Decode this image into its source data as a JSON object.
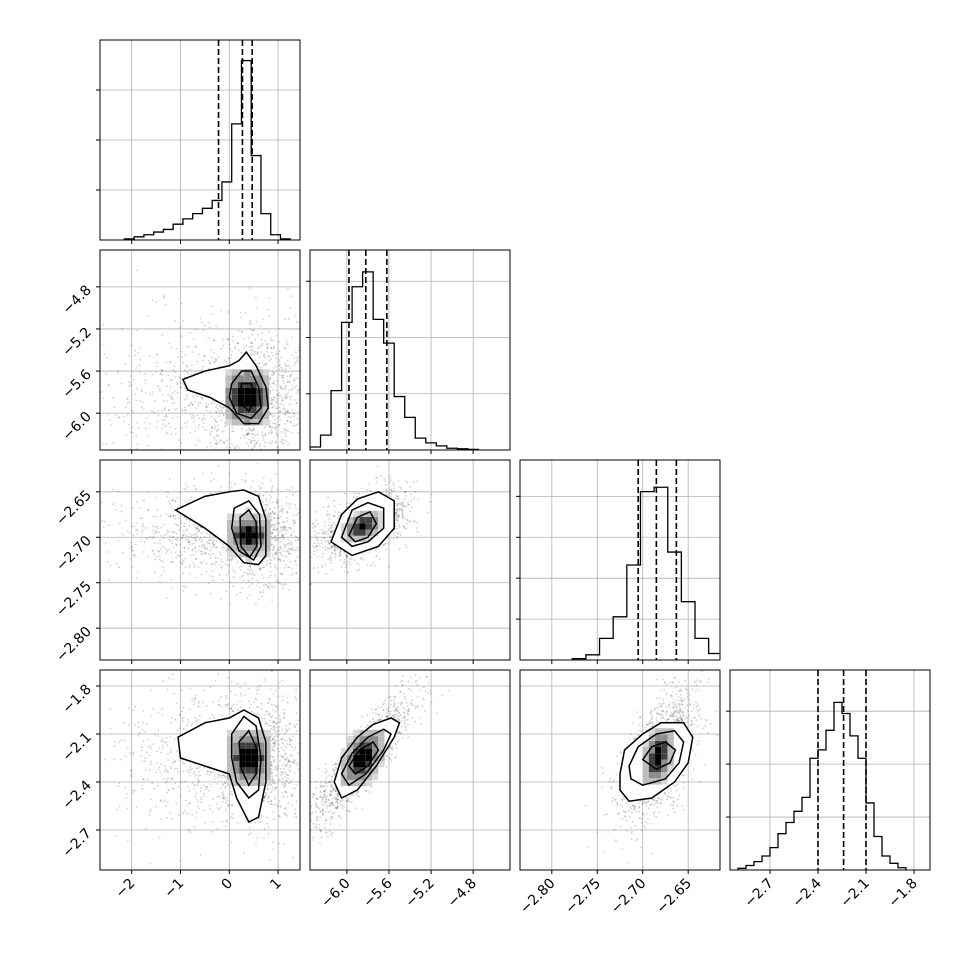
{
  "chart_data": {
    "type": "corner",
    "grid": true,
    "variables": [
      {
        "index": 0,
        "range": [
          -2.65,
          1.45
        ],
        "ticks": [
          -2,
          -1,
          0,
          1
        ],
        "tick_labels": [
          "−2",
          "−1",
          "0",
          "1"
        ],
        "quantiles": [
          -0.22,
          0.27,
          0.47
        ],
        "hist_max": 0.36,
        "hist_bins": [
          [
            -2.05,
            0.002
          ],
          [
            -1.85,
            0.006
          ],
          [
            -1.65,
            0.01
          ],
          [
            -1.45,
            0.015
          ],
          [
            -1.25,
            0.02
          ],
          [
            -1.05,
            0.03
          ],
          [
            -0.85,
            0.04
          ],
          [
            -0.65,
            0.05
          ],
          [
            -0.45,
            0.06
          ],
          [
            -0.25,
            0.075
          ],
          [
            -0.05,
            0.11
          ],
          [
            0.15,
            0.22
          ],
          [
            0.35,
            0.34
          ],
          [
            0.55,
            0.16
          ],
          [
            0.75,
            0.05
          ],
          [
            0.95,
            0.01
          ],
          [
            1.15,
            0.002
          ]
        ]
      },
      {
        "index": 1,
        "range": [
          -6.35,
          -4.45
        ],
        "ticks": [
          -6.0,
          -5.6,
          -5.2,
          -4.8
        ],
        "tick_labels": [
          "−6.0",
          "−5.6",
          "−5.2",
          "−4.8"
        ],
        "quantiles": [
          -5.98,
          -5.82,
          -5.62
        ],
        "hist_max": 0.32,
        "hist_bins": [
          [
            -6.3,
            0.005
          ],
          [
            -6.2,
            0.025
          ],
          [
            -6.1,
            0.1
          ],
          [
            -6.0,
            0.215
          ],
          [
            -5.9,
            0.275
          ],
          [
            -5.8,
            0.3
          ],
          [
            -5.7,
            0.22
          ],
          [
            -5.6,
            0.18
          ],
          [
            -5.5,
            0.09
          ],
          [
            -5.4,
            0.055
          ],
          [
            -5.3,
            0.02
          ],
          [
            -5.2,
            0.012
          ],
          [
            -5.1,
            0.007
          ],
          [
            -5.0,
            0.003
          ],
          [
            -4.9,
            0.002
          ],
          [
            -4.8,
            0.001
          ]
        ]
      },
      {
        "index": 2,
        "range": [
          -2.835,
          -2.615
        ],
        "ticks": [
          -2.8,
          -2.75,
          -2.7,
          -2.65
        ],
        "tick_labels": [
          "−2.80",
          "−2.75",
          "−2.70",
          "−2.65"
        ],
        "quantiles": [
          -2.705,
          -2.685,
          -2.663
        ],
        "hist_max": 0.44,
        "hist_bins": [
          [
            -2.77,
            0.003
          ],
          [
            -2.755,
            0.012
          ],
          [
            -2.74,
            0.05
          ],
          [
            -2.725,
            0.1
          ],
          [
            -2.71,
            0.22
          ],
          [
            -2.695,
            0.39
          ],
          [
            -2.68,
            0.4
          ],
          [
            -2.665,
            0.25
          ],
          [
            -2.65,
            0.135
          ],
          [
            -2.635,
            0.05
          ],
          [
            -2.62,
            0.015
          ]
        ]
      },
      {
        "index": 3,
        "range": [
          -2.95,
          -1.7
        ],
        "ticks": [
          -2.7,
          -2.4,
          -2.1,
          -1.8
        ],
        "tick_labels": [
          "−2.7",
          "−2.4",
          "−2.1",
          "−1.8"
        ],
        "quantiles": [
          -2.4,
          -2.24,
          -2.1
        ],
        "hist_max": 0.34,
        "hist_bins": [
          [
            -2.875,
            0.003
          ],
          [
            -2.825,
            0.008
          ],
          [
            -2.775,
            0.015
          ],
          [
            -2.725,
            0.025
          ],
          [
            -2.675,
            0.04
          ],
          [
            -2.625,
            0.065
          ],
          [
            -2.575,
            0.085
          ],
          [
            -2.525,
            0.105
          ],
          [
            -2.475,
            0.13
          ],
          [
            -2.425,
            0.2
          ],
          [
            -2.375,
            0.215
          ],
          [
            -2.325,
            0.25
          ],
          [
            -2.275,
            0.3
          ],
          [
            -2.225,
            0.28
          ],
          [
            -2.175,
            0.24
          ],
          [
            -2.125,
            0.2
          ],
          [
            -2.075,
            0.12
          ],
          [
            -2.025,
            0.06
          ],
          [
            -1.975,
            0.025
          ],
          [
            -1.925,
            0.012
          ],
          [
            -1.875,
            0.004
          ]
        ]
      }
    ],
    "pairs": [
      {
        "x_var": 0,
        "y_var": 1,
        "peak": [
          0.37,
          -5.85
        ],
        "spread": [
          0.55,
          0.28
        ],
        "cov": 0.0,
        "contours": [
          [
            [
              -0.95,
              -5.68
            ],
            [
              -0.5,
              -5.6
            ],
            [
              0.0,
              -5.55
            ],
            [
              0.2,
              -5.5
            ],
            [
              0.35,
              -5.42
            ],
            [
              0.55,
              -5.55
            ],
            [
              0.75,
              -5.75
            ],
            [
              0.8,
              -5.95
            ],
            [
              0.6,
              -6.1
            ],
            [
              0.3,
              -6.1
            ],
            [
              0.0,
              -5.95
            ],
            [
              -0.4,
              -5.85
            ],
            [
              -0.85,
              -5.78
            ]
          ],
          [
            [
              0.05,
              -5.72
            ],
            [
              0.25,
              -5.6
            ],
            [
              0.45,
              -5.6
            ],
            [
              0.6,
              -5.75
            ],
            [
              0.65,
              -5.95
            ],
            [
              0.45,
              -6.05
            ],
            [
              0.15,
              -6.0
            ],
            [
              0.0,
              -5.85
            ]
          ],
          [
            [
              0.25,
              -5.72
            ],
            [
              0.45,
              -5.72
            ],
            [
              0.52,
              -5.88
            ],
            [
              0.4,
              -5.98
            ],
            [
              0.22,
              -5.9
            ]
          ]
        ]
      },
      {
        "x_var": 0,
        "y_var": 2,
        "peak": [
          0.4,
          -2.698
        ],
        "spread": [
          0.5,
          0.02
        ],
        "cov": 0.0,
        "contours": [
          [
            [
              -1.1,
              -2.67
            ],
            [
              -0.5,
              -2.655
            ],
            [
              0.0,
              -2.65
            ],
            [
              0.3,
              -2.648
            ],
            [
              0.6,
              -2.655
            ],
            [
              0.75,
              -2.68
            ],
            [
              0.75,
              -2.72
            ],
            [
              0.6,
              -2.73
            ],
            [
              0.3,
              -2.728
            ],
            [
              0.0,
              -2.71
            ],
            [
              -0.5,
              -2.69
            ]
          ],
          [
            [
              0.1,
              -2.668
            ],
            [
              0.4,
              -2.66
            ],
            [
              0.62,
              -2.675
            ],
            [
              0.65,
              -2.71
            ],
            [
              0.5,
              -2.725
            ],
            [
              0.2,
              -2.715
            ],
            [
              0.05,
              -2.69
            ]
          ],
          [
            [
              0.22,
              -2.678
            ],
            [
              0.4,
              -2.67
            ],
            [
              0.55,
              -2.683
            ],
            [
              0.56,
              -2.71
            ],
            [
              0.42,
              -2.722
            ],
            [
              0.24,
              -2.71
            ]
          ]
        ]
      },
      {
        "x_var": 1,
        "y_var": 2,
        "peak": [
          -5.85,
          -2.688
        ],
        "spread": [
          0.16,
          0.014
        ],
        "cov": 0.5,
        "contours": [
          [
            [
              -6.15,
              -2.705
            ],
            [
              -6.05,
              -2.675
            ],
            [
              -5.9,
              -2.658
            ],
            [
              -5.7,
              -2.65
            ],
            [
              -5.55,
              -2.66
            ],
            [
              -5.55,
              -2.69
            ],
            [
              -5.7,
              -2.71
            ],
            [
              -5.95,
              -2.72
            ]
          ],
          [
            [
              -6.05,
              -2.7
            ],
            [
              -5.95,
              -2.67
            ],
            [
              -5.8,
              -2.662
            ],
            [
              -5.65,
              -2.668
            ],
            [
              -5.65,
              -2.69
            ],
            [
              -5.8,
              -2.705
            ],
            [
              -5.95,
              -2.71
            ]
          ],
          [
            [
              -5.98,
              -2.698
            ],
            [
              -5.9,
              -2.678
            ],
            [
              -5.78,
              -2.672
            ],
            [
              -5.72,
              -2.685
            ],
            [
              -5.8,
              -2.7
            ],
            [
              -5.92,
              -2.705
            ]
          ]
        ]
      },
      {
        "x_var": 0,
        "y_var": 3,
        "peak": [
          0.4,
          -2.25
        ],
        "spread": [
          0.5,
          0.16
        ],
        "cov": 0.0,
        "contours": [
          [
            [
              -1.05,
              -2.12
            ],
            [
              -0.5,
              -2.03
            ],
            [
              0.0,
              -2.0
            ],
            [
              0.3,
              -1.95
            ],
            [
              0.6,
              -2.0
            ],
            [
              0.75,
              -2.15
            ],
            [
              0.75,
              -2.4
            ],
            [
              0.6,
              -2.62
            ],
            [
              0.4,
              -2.65
            ],
            [
              0.15,
              -2.5
            ],
            [
              0.0,
              -2.35
            ],
            [
              -0.5,
              -2.3
            ],
            [
              -1.0,
              -2.25
            ]
          ],
          [
            [
              0.05,
              -2.1
            ],
            [
              0.3,
              -1.99
            ],
            [
              0.55,
              -2.05
            ],
            [
              0.65,
              -2.25
            ],
            [
              0.6,
              -2.45
            ],
            [
              0.4,
              -2.5
            ],
            [
              0.15,
              -2.4
            ],
            [
              0.05,
              -2.25
            ]
          ],
          [
            [
              0.2,
              -2.15
            ],
            [
              0.4,
              -2.08
            ],
            [
              0.55,
              -2.18
            ],
            [
              0.55,
              -2.35
            ],
            [
              0.4,
              -2.42
            ],
            [
              0.25,
              -2.32
            ]
          ]
        ]
      },
      {
        "x_var": 1,
        "y_var": 3,
        "peak": [
          -5.85,
          -2.25
        ],
        "spread": [
          0.18,
          0.15
        ],
        "cov": 0.9,
        "contours": [
          [
            [
              -6.12,
              -2.4
            ],
            [
              -6.05,
              -2.25
            ],
            [
              -5.9,
              -2.12
            ],
            [
              -5.75,
              -2.04
            ],
            [
              -5.58,
              -2.0
            ],
            [
              -5.5,
              -2.03
            ],
            [
              -5.55,
              -2.12
            ],
            [
              -5.72,
              -2.3
            ],
            [
              -5.9,
              -2.45
            ],
            [
              -6.05,
              -2.5
            ]
          ],
          [
            [
              -6.05,
              -2.35
            ],
            [
              -5.95,
              -2.22
            ],
            [
              -5.8,
              -2.12
            ],
            [
              -5.65,
              -2.07
            ],
            [
              -5.58,
              -2.1
            ],
            [
              -5.65,
              -2.2
            ],
            [
              -5.82,
              -2.35
            ],
            [
              -5.98,
              -2.42
            ]
          ],
          [
            [
              -5.98,
              -2.3
            ],
            [
              -5.88,
              -2.2
            ],
            [
              -5.75,
              -2.15
            ],
            [
              -5.7,
              -2.2
            ],
            [
              -5.8,
              -2.3
            ],
            [
              -5.92,
              -2.35
            ]
          ]
        ]
      },
      {
        "x_var": 2,
        "y_var": 3,
        "peak": [
          -2.683,
          -2.24
        ],
        "spread": [
          0.016,
          0.15
        ],
        "cov": 0.6,
        "contours": [
          [
            [
              -2.725,
              -2.35
            ],
            [
              -2.72,
              -2.2
            ],
            [
              -2.7,
              -2.1
            ],
            [
              -2.68,
              -2.03
            ],
            [
              -2.655,
              -2.03
            ],
            [
              -2.645,
              -2.12
            ],
            [
              -2.65,
              -2.28
            ],
            [
              -2.665,
              -2.4
            ],
            [
              -2.69,
              -2.5
            ],
            [
              -2.715,
              -2.52
            ],
            [
              -2.725,
              -2.45
            ]
          ],
          [
            [
              -2.715,
              -2.3
            ],
            [
              -2.705,
              -2.18
            ],
            [
              -2.685,
              -2.1
            ],
            [
              -2.665,
              -2.08
            ],
            [
              -2.655,
              -2.15
            ],
            [
              -2.66,
              -2.28
            ],
            [
              -2.675,
              -2.38
            ],
            [
              -2.7,
              -2.42
            ],
            [
              -2.713,
              -2.38
            ]
          ],
          [
            [
              -2.7,
              -2.26
            ],
            [
              -2.69,
              -2.18
            ],
            [
              -2.675,
              -2.15
            ],
            [
              -2.664,
              -2.2
            ],
            [
              -2.67,
              -2.28
            ],
            [
              -2.685,
              -2.32
            ]
          ]
        ]
      }
    ]
  }
}
